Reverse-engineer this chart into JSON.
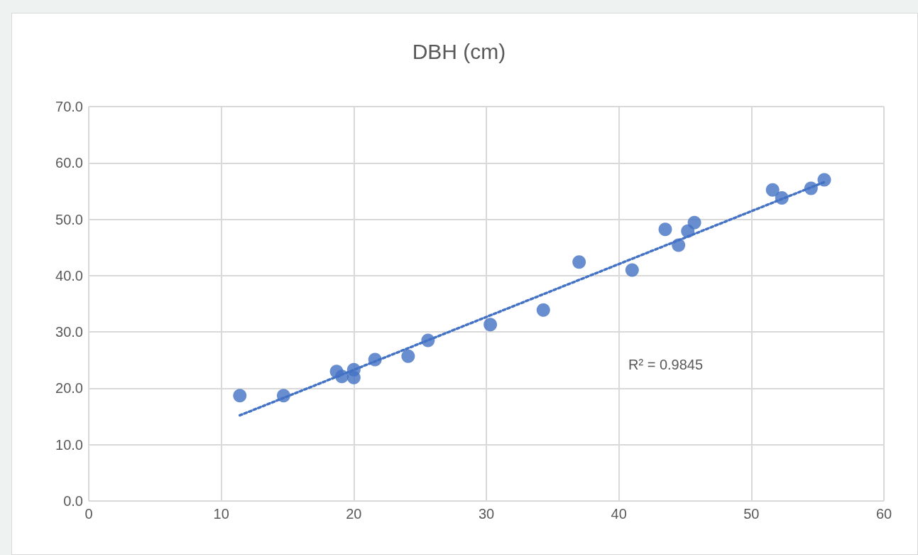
{
  "chart_data": {
    "type": "scatter",
    "title": "DBH (cm)",
    "annotations": [
      "R² = 0.9845"
    ],
    "xlim": [
      0,
      60
    ],
    "xticks": [
      0,
      10,
      20,
      30,
      40,
      50,
      60
    ],
    "ylim": [
      0,
      70
    ],
    "yticks": [
      {
        "value": 0,
        "label": "0.0"
      },
      {
        "value": 10,
        "label": "10.0"
      },
      {
        "value": 20,
        "label": "20.0"
      },
      {
        "value": 30,
        "label": "30.0"
      },
      {
        "value": 40,
        "label": "40.0"
      },
      {
        "value": 50,
        "label": "50.0"
      },
      {
        "value": 60,
        "label": "60.0"
      },
      {
        "value": 70,
        "label": "70.0"
      }
    ],
    "grid": true,
    "marker": "circle",
    "series": [
      {
        "color": "#4472c4",
        "x": [
          11.4,
          14.7,
          18.7,
          19.1,
          20.0,
          20.0,
          21.6,
          24.1,
          25.6,
          30.3,
          34.3,
          37.0,
          41.0,
          43.5,
          44.5,
          45.2,
          45.7,
          51.6,
          52.3,
          54.5,
          55.5
        ],
        "values": [
          18.7,
          18.7,
          23.0,
          22.1,
          23.3,
          21.9,
          25.1,
          25.7,
          28.5,
          31.3,
          33.9,
          42.4,
          41.0,
          48.2,
          45.4,
          47.9,
          49.4,
          55.2,
          53.8,
          55.5,
          57.0
        ]
      },
      {
        "type": "line",
        "color": "#4472c4",
        "marker": "none",
        "line_style": "dotted",
        "x": [
          11.4,
          55.5
        ],
        "values": [
          15.2,
          56.6
        ]
      }
    ]
  }
}
